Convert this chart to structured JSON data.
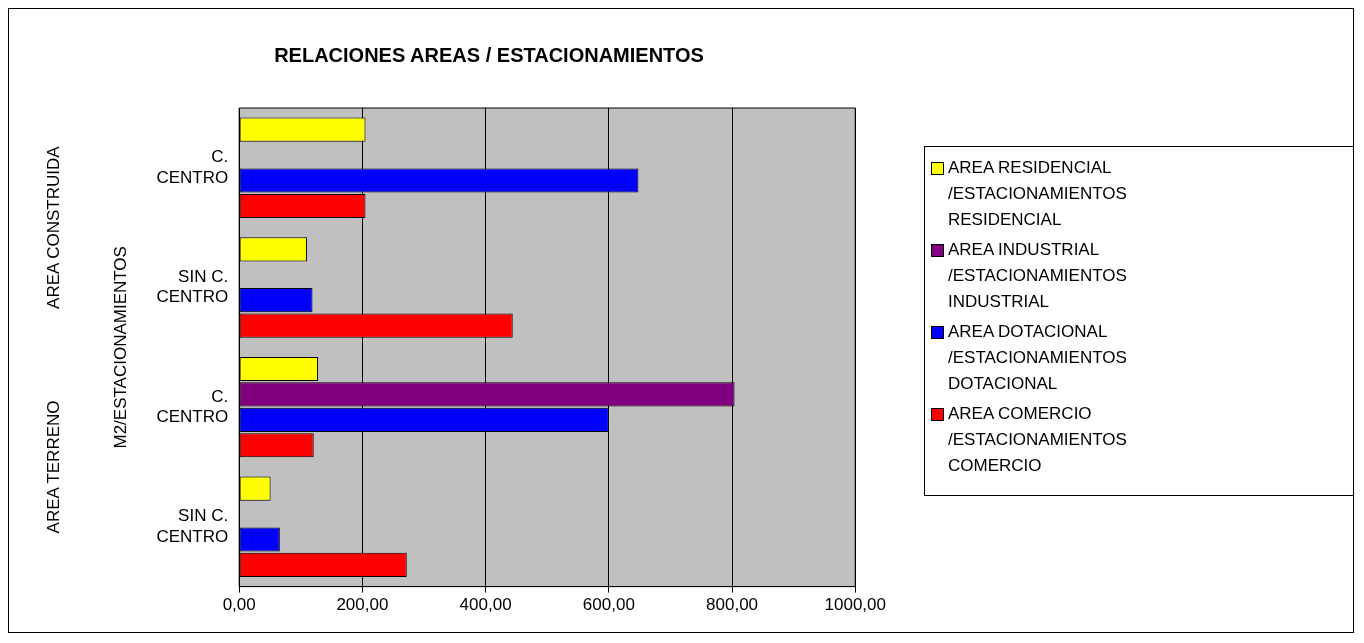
{
  "chart_data": {
    "type": "bar",
    "orientation": "horizontal",
    "title": "RELACIONES AREAS / ESTACIONAMIENTOS",
    "ylabel": "M2/ESTACIONAMIENTOS",
    "categories": [
      "C. CENTRO",
      "SIN C. CENTRO",
      "C. CENTRO",
      "SIN C. CENTRO"
    ],
    "annotations": [
      "AREA CONSTRUIDA",
      "AREA TERRENO"
    ],
    "series": [
      {
        "name": "AREA RESIDENCIAL /ESTACIONAMIENTOS RESIDENCIAL",
        "color": "#ffff00",
        "values": [
          205,
          110,
          128,
          51
        ]
      },
      {
        "name": "AREA INDUSTRIAL /ESTACIONAMIENTOS INDUSTRIAL",
        "color": "#800080",
        "values": [
          null,
          null,
          804,
          null
        ]
      },
      {
        "name": "AREA DOTACIONAL /ESTACIONAMIENTOS DOTACIONAL",
        "color": "#0000ff",
        "values": [
          648,
          119,
          600,
          66
        ]
      },
      {
        "name": "AREA COMERCIO /ESTACIONAMIENTOS COMERCIO",
        "color": "#ff0000",
        "values": [
          205,
          444,
          121,
          272
        ]
      }
    ],
    "xlim": [
      0,
      1000
    ],
    "xticks": [
      {
        "value": 0,
        "label": "0,00"
      },
      {
        "value": 200,
        "label": "200,00"
      },
      {
        "value": 400,
        "label": "400,00"
      },
      {
        "value": 600,
        "label": "600,00"
      },
      {
        "value": 800,
        "label": "800,00"
      },
      {
        "value": 1000,
        "label": "1000,00"
      }
    ],
    "grid": "x",
    "legend": "right"
  }
}
